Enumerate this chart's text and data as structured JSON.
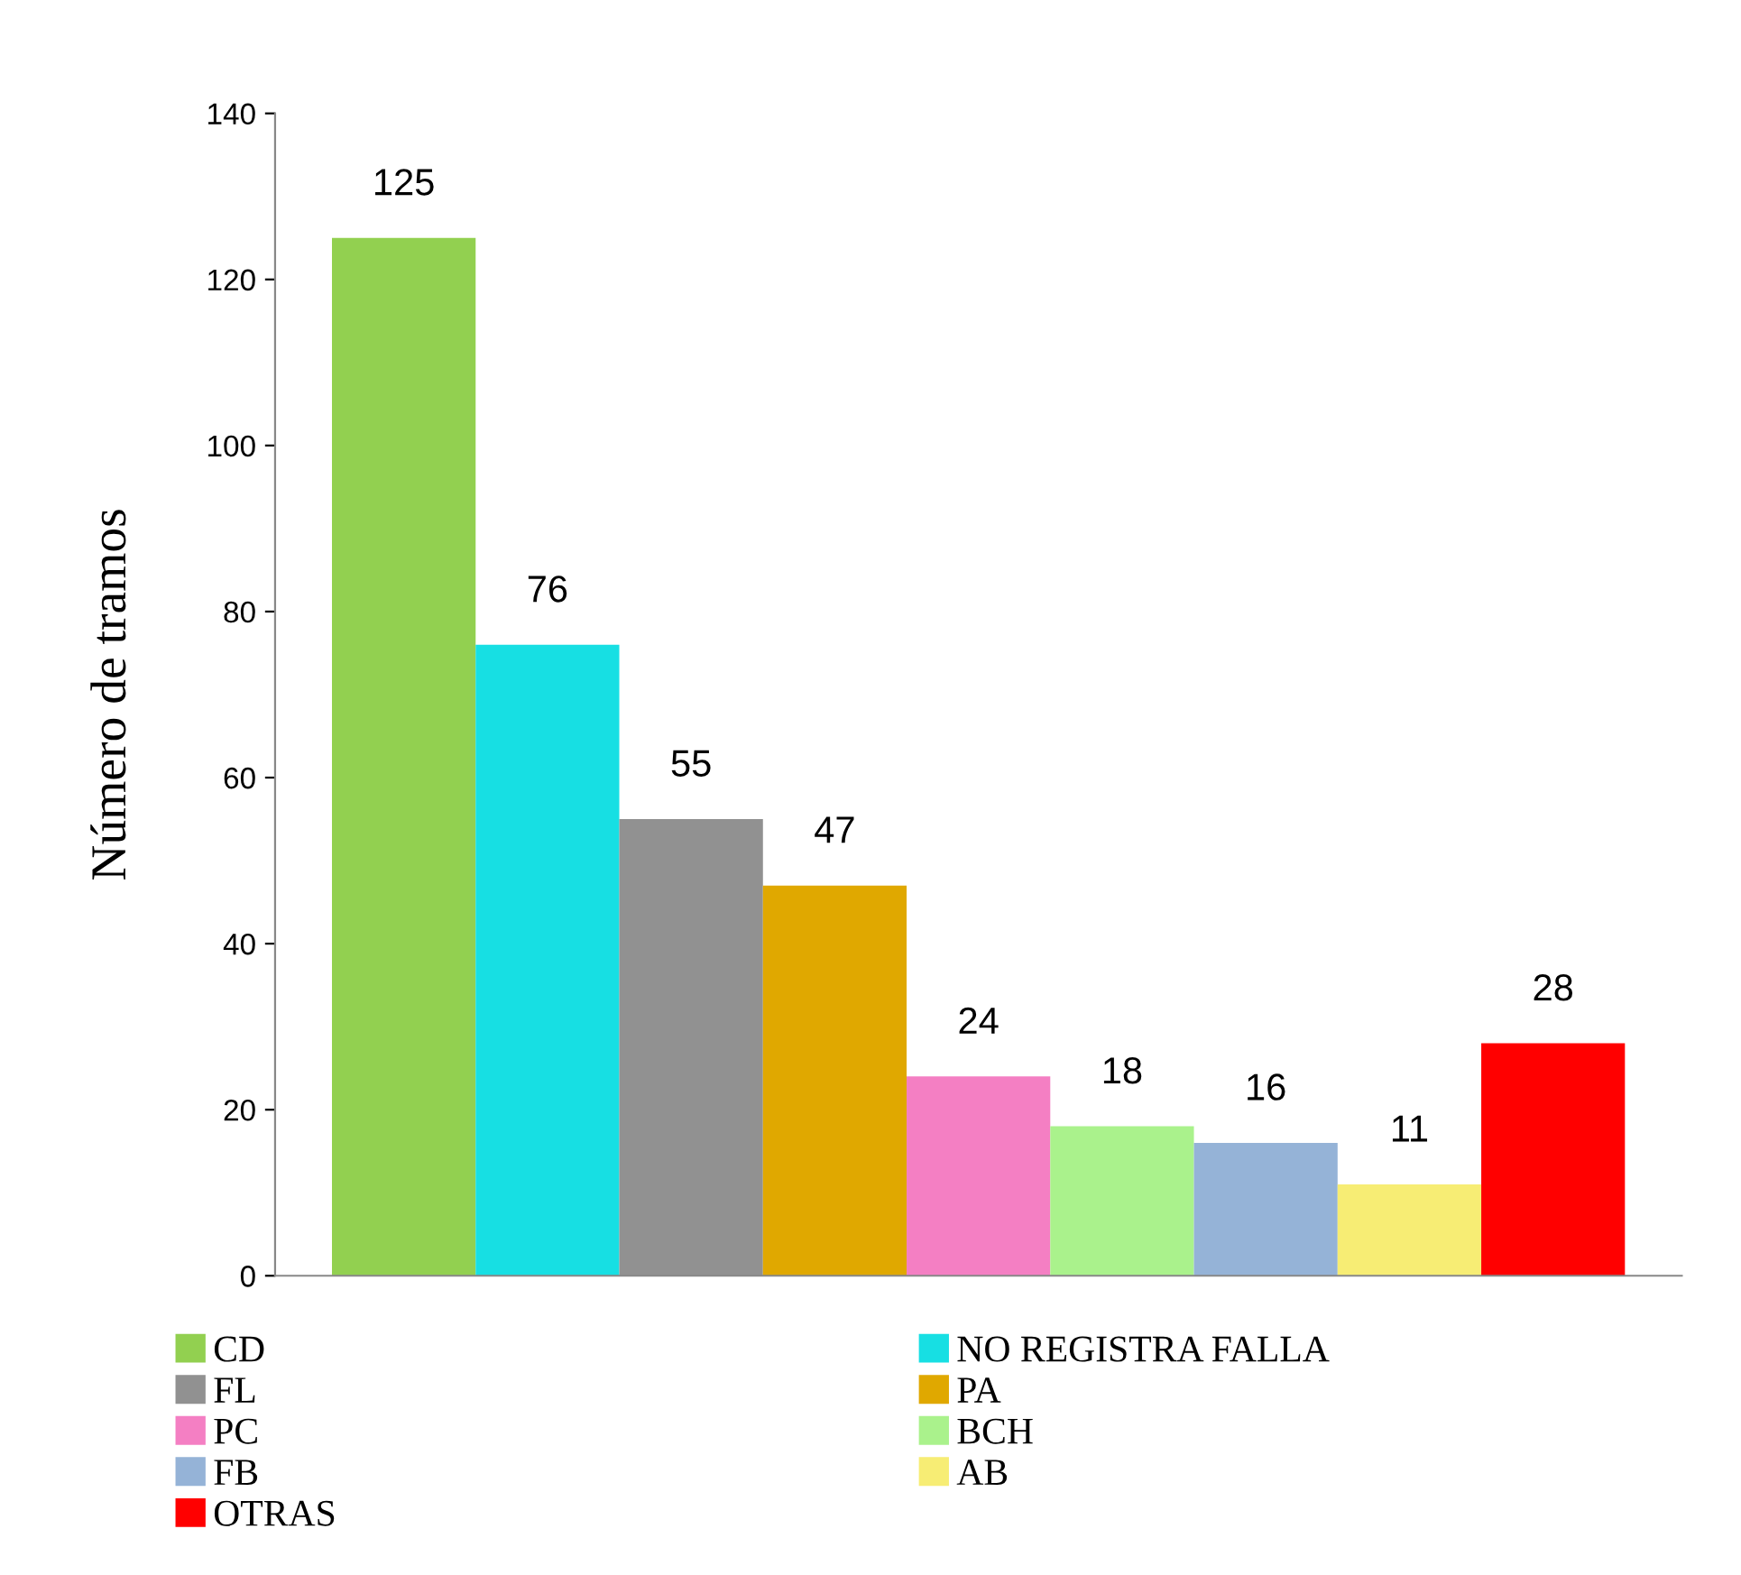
{
  "chart_data": {
    "type": "bar",
    "ylabel": "Número de tramos",
    "categories": [
      null
    ],
    "series": [
      {
        "name": "CD",
        "color": "#92d050",
        "values": [
          125
        ]
      },
      {
        "name": "NO REGISTRA FALLA",
        "color": "#17dfe3",
        "values": [
          76
        ]
      },
      {
        "name": "FL",
        "color": "#919191",
        "values": [
          55
        ]
      },
      {
        "name": "PA",
        "color": "#e0a800",
        "values": [
          47
        ]
      },
      {
        "name": "PC",
        "color": "#f47fc3",
        "values": [
          24
        ]
      },
      {
        "name": "BCH",
        "color": "#aaf28c",
        "values": [
          18
        ]
      },
      {
        "name": "FB",
        "color": "#95b3d7",
        "values": [
          16
        ]
      },
      {
        "name": "AB",
        "color": "#f7ed74",
        "values": [
          11
        ]
      },
      {
        "name": "OTRAS",
        "color": "#ff0000",
        "values": [
          28
        ]
      }
    ],
    "ylim": [
      0,
      140
    ],
    "yticks": [
      0,
      20,
      40,
      60,
      80,
      100,
      120,
      140
    ],
    "grid": false,
    "legend": "bottom",
    "data_labels": true
  }
}
